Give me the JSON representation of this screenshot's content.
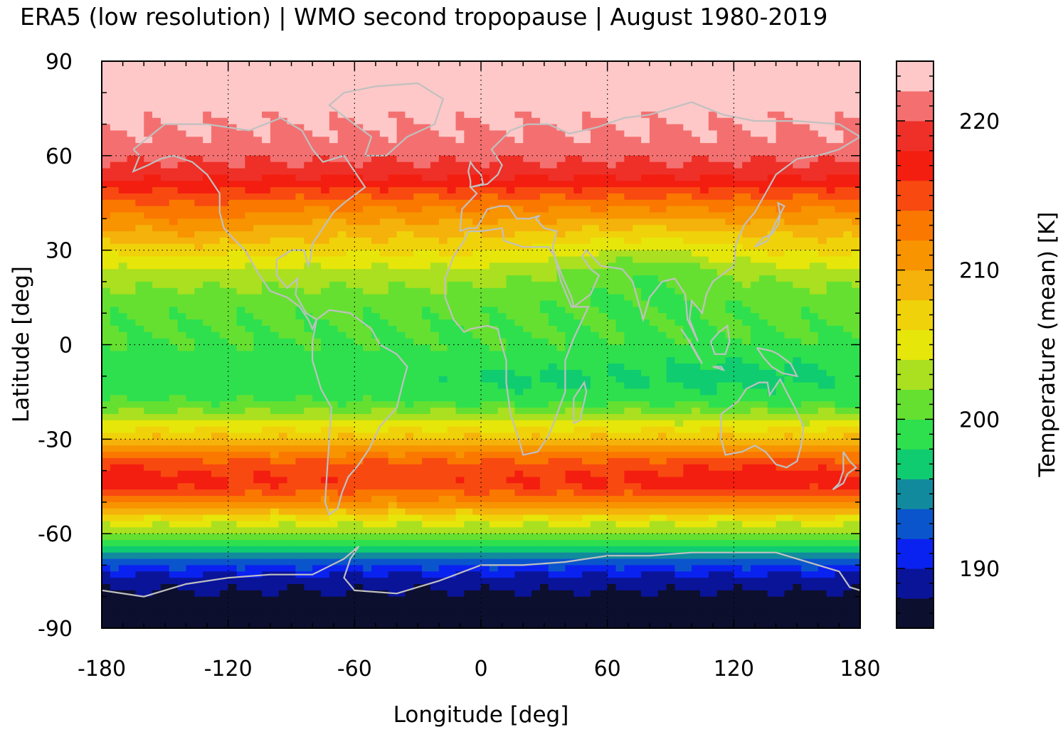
{
  "title": "ERA5 (low resolution) | WMO second tropopause | August 1980-2019",
  "chart_data": {
    "type": "heatmap",
    "xlabel": "Longitude [deg]",
    "ylabel": "Latitude [deg]",
    "xlim": [
      -180,
      180
    ],
    "ylim": [
      -90,
      90
    ],
    "xticks": [
      -180,
      -120,
      -60,
      0,
      60,
      120,
      180
    ],
    "yticks": [
      90,
      60,
      30,
      0,
      -30,
      -60,
      -90
    ],
    "grid": true,
    "overlay": "coastlines",
    "colorbar": {
      "label": "Temperature (mean) [K]",
      "range": [
        186,
        224
      ],
      "ticks": [
        190,
        200,
        210,
        220
      ],
      "colors": [
        "#0d0f2e",
        "#0a1499",
        "#0a22f0",
        "#0a55cc",
        "#118a9e",
        "#10cc70",
        "#2ee04e",
        "#66e030",
        "#aae020",
        "#e6e60a",
        "#f0d20a",
        "#f5b20a",
        "#f79400",
        "#fa7800",
        "#f84a10",
        "#f41e10",
        "#ee3028",
        "#f47070",
        "#ffc8c8"
      ]
    },
    "latitude_profile_K": [
      {
        "lat": 88,
        "value": 222.5
      },
      {
        "lat": 75,
        "value": 222.6
      },
      {
        "lat": 63,
        "value": 221.4
      },
      {
        "lat": 58,
        "value": 220.0
      },
      {
        "lat": 52,
        "value": 217.5
      },
      {
        "lat": 45,
        "value": 213.0
      },
      {
        "lat": 38,
        "value": 209.5
      },
      {
        "lat": 30,
        "value": 206.5
      },
      {
        "lat": 22,
        "value": 203.0
      },
      {
        "lat": 12,
        "value": 200.5
      },
      {
        "lat": 0,
        "value": 199.8
      },
      {
        "lat": -10,
        "value": 198.8
      },
      {
        "lat": -18,
        "value": 199.8
      },
      {
        "lat": -25,
        "value": 204.5
      },
      {
        "lat": -32,
        "value": 210.0
      },
      {
        "lat": -38,
        "value": 215.0
      },
      {
        "lat": -44,
        "value": 216.5
      },
      {
        "lat": -50,
        "value": 212.0
      },
      {
        "lat": -56,
        "value": 205.0
      },
      {
        "lat": -62,
        "value": 200.0
      },
      {
        "lat": -68,
        "value": 194.0
      },
      {
        "lat": -73,
        "value": 190.0
      },
      {
        "lat": -78,
        "value": 188.0
      },
      {
        "lat": -85,
        "value": 186.0
      },
      {
        "lat": -90,
        "value": 186.0
      }
    ]
  }
}
